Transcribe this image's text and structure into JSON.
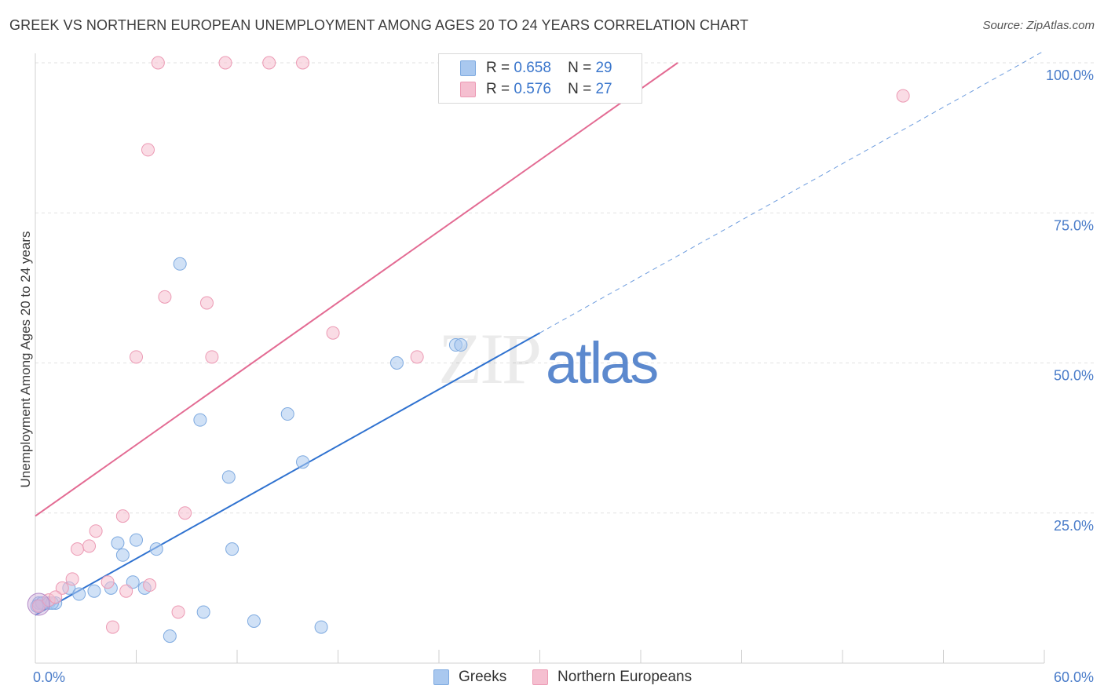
{
  "header": {
    "title": "GREEK VS NORTHERN EUROPEAN UNEMPLOYMENT AMONG AGES 20 TO 24 YEARS CORRELATION CHART",
    "source": "Source: ZipAtlas.com"
  },
  "watermark": "ZIPatlas",
  "legend": {
    "rows": [
      {
        "r_label": "R =",
        "r_value": "0.658",
        "n_label": "N =",
        "n_value": "29"
      },
      {
        "r_label": "R =",
        "r_value": "0.576",
        "n_label": "N =",
        "n_value": "27"
      }
    ],
    "bottom": [
      "Greeks",
      "Northern Europeans"
    ]
  },
  "colors": {
    "greeks_fill": "#a9c8ef",
    "greeks_stroke": "#7eaae0",
    "greeks_line": "#2f72d0",
    "ne_fill": "#f5bfd0",
    "ne_stroke": "#ec9ab4",
    "ne_line": "#e36b93",
    "axis_text": "#4a7cc9"
  },
  "chart_data": {
    "type": "scatter",
    "title": "GREEK VS NORTHERN EUROPEAN UNEMPLOYMENT AMONG AGES 20 TO 24 YEARS CORRELATION CHART",
    "xlabel": "",
    "ylabel": "Unemployment Among Ages 20 to 24 years",
    "xlim": [
      0,
      60
    ],
    "ylim": [
      0,
      100
    ],
    "x_tick_labels": [
      "0.0%",
      "60.0%"
    ],
    "y_ticks": [
      25,
      50,
      75,
      100
    ],
    "y_tick_labels": [
      "25.0%",
      "50.0%",
      "75.0%",
      "100.0%"
    ],
    "grid": true,
    "series": [
      {
        "name": "Greeks",
        "r": 0.658,
        "n": 29,
        "points": [
          [
            0.2,
            10.0
          ],
          [
            0.4,
            10.0
          ],
          [
            0.8,
            10.0
          ],
          [
            1.2,
            10.0
          ],
          [
            2.0,
            12.5
          ],
          [
            2.6,
            11.5
          ],
          [
            3.5,
            12.0
          ],
          [
            4.5,
            12.5
          ],
          [
            4.9,
            20.0
          ],
          [
            5.8,
            13.5
          ],
          [
            5.2,
            18.0
          ],
          [
            6.0,
            20.5
          ],
          [
            6.5,
            12.5
          ],
          [
            7.2,
            19.0
          ],
          [
            8.0,
            4.5
          ],
          [
            8.6,
            66.5
          ],
          [
            9.8,
            40.5
          ],
          [
            10.0,
            8.5
          ],
          [
            11.5,
            31.0
          ],
          [
            11.7,
            19.0
          ],
          [
            13.0,
            7.0
          ],
          [
            15.0,
            41.5
          ],
          [
            15.9,
            33.5
          ],
          [
            17.0,
            6.0
          ],
          [
            21.5,
            50.0
          ],
          [
            25.0,
            53.0
          ],
          [
            25.3,
            53.0
          ],
          [
            0.1,
            9.5
          ],
          [
            1.0,
            10.0
          ]
        ],
        "trend": {
          "x": [
            0,
            30
          ],
          "y": [
            8.0,
            55.0
          ],
          "dashed_extension": {
            "x": [
              30,
              60
            ],
            "y": [
              55.0,
              102.0
            ]
          }
        }
      },
      {
        "name": "Northern Europeans",
        "r": 0.576,
        "n": 27,
        "points": [
          [
            0.2,
            9.5
          ],
          [
            0.8,
            10.5
          ],
          [
            1.6,
            12.5
          ],
          [
            2.2,
            14.0
          ],
          [
            2.5,
            19.0
          ],
          [
            3.2,
            19.5
          ],
          [
            3.6,
            22.0
          ],
          [
            4.3,
            13.5
          ],
          [
            4.6,
            6.0
          ],
          [
            5.2,
            24.5
          ],
          [
            5.4,
            12.0
          ],
          [
            6.0,
            51.0
          ],
          [
            6.8,
            13.0
          ],
          [
            6.7,
            85.5
          ],
          [
            7.3,
            100.0
          ],
          [
            7.7,
            61.0
          ],
          [
            8.5,
            8.5
          ],
          [
            8.9,
            25.0
          ],
          [
            10.2,
            60.0
          ],
          [
            10.5,
            51.0
          ],
          [
            11.3,
            100.0
          ],
          [
            13.9,
            100.0
          ],
          [
            15.9,
            100.0
          ],
          [
            17.7,
            55.0
          ],
          [
            22.7,
            51.0
          ],
          [
            51.6,
            94.5
          ],
          [
            1.2,
            11.0
          ]
        ],
        "trend": {
          "x": [
            0,
            38.2
          ],
          "y": [
            24.5,
            100.0
          ]
        }
      }
    ]
  }
}
